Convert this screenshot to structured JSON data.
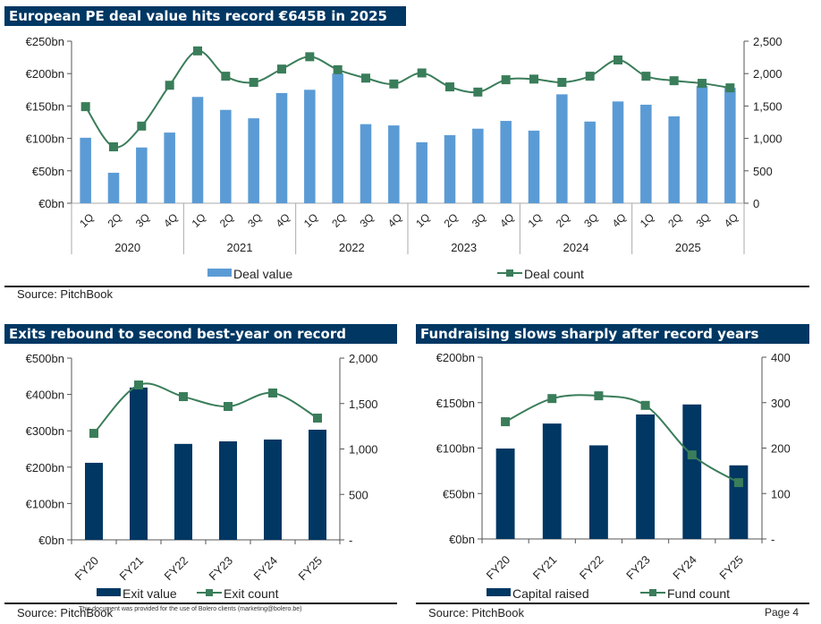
{
  "page": {
    "number_label": "Page 4",
    "disclaimer": "This document was provided for the use of Bolero clients (marketing@bolero.be)"
  },
  "colors": {
    "banner": "#003763",
    "deal_bar": "#5b9bd5",
    "navy_bar": "#003763",
    "line": "#3a7d5a"
  },
  "chart_data": [
    {
      "id": "deals",
      "type": "bar",
      "title": "European PE deal value hits record €645B in 2025",
      "source": "Source: PitchBook",
      "categories": [
        "1Q",
        "2Q",
        "3Q",
        "4Q",
        "1Q",
        "2Q",
        "3Q",
        "4Q",
        "1Q",
        "2Q",
        "3Q",
        "4Q",
        "1Q",
        "2Q",
        "3Q",
        "4Q",
        "1Q",
        "2Q",
        "3Q",
        "4Q",
        "1Q",
        "2Q",
        "3Q",
        "4Q"
      ],
      "groups": [
        "2020",
        "2021",
        "2022",
        "2023",
        "2024",
        "2025"
      ],
      "y_ticks": [
        "€0bn",
        "€50bn",
        "€100bn",
        "€150bn",
        "€200bn",
        "€250bn"
      ],
      "y2_ticks": [
        "0",
        "500",
        "1,000",
        "1,500",
        "2,000",
        "2,500"
      ],
      "ylim": [
        0,
        250
      ],
      "y2lim": [
        0,
        2500
      ],
      "series": [
        {
          "name": "Deal value",
          "type": "bar",
          "axis": "left",
          "values": [
            101,
            47,
            86,
            109,
            164,
            144,
            131,
            170,
            175,
            200,
            122,
            120,
            94,
            105,
            115,
            127,
            112,
            168,
            126,
            157,
            152,
            134,
            181,
            178
          ]
        },
        {
          "name": "Deal count",
          "type": "line",
          "axis": "right",
          "values": [
            1490,
            870,
            1190,
            1820,
            2350,
            1960,
            1865,
            2070,
            2260,
            2060,
            1930,
            1840,
            2010,
            1795,
            1715,
            1905,
            1915,
            1865,
            1960,
            2210,
            1960,
            1890,
            1850,
            1780
          ]
        }
      ],
      "legend": "bottom"
    },
    {
      "id": "exits",
      "type": "bar",
      "title": "Exits rebound to second best-year on record",
      "source": "Source: PitchBook",
      "categories": [
        "FY20",
        "FY21",
        "FY22",
        "FY23",
        "FY24",
        "FY25"
      ],
      "y_ticks": [
        "€0bn",
        "€100bn",
        "€200bn",
        "€300bn",
        "€400bn",
        "€500bn"
      ],
      "y2_ticks": [
        "-",
        "500",
        "1,000",
        "1,500",
        "2,000"
      ],
      "ylim": [
        0,
        500
      ],
      "y2lim": [
        0,
        2000
      ],
      "series": [
        {
          "name": "Exit value",
          "type": "bar",
          "axis": "left",
          "values": [
            212,
            419,
            264,
            271,
            276,
            303
          ]
        },
        {
          "name": "Exit count",
          "type": "line",
          "axis": "right",
          "values": [
            1172,
            1704,
            1576,
            1468,
            1616,
            1340
          ]
        }
      ],
      "legend": "bottom"
    },
    {
      "id": "fundraising",
      "type": "bar",
      "title": "Fundraising slows sharply after record years",
      "source": "Source: PitchBook",
      "categories": [
        "FY20",
        "FY21",
        "FY22",
        "FY23",
        "FY24",
        "FY25"
      ],
      "y_ticks": [
        "€0bn",
        "€50bn",
        "€100bn",
        "€150bn",
        "€200bn"
      ],
      "y2_ticks": [
        "-",
        "100",
        "200",
        "300",
        "400"
      ],
      "ylim": [
        0,
        200
      ],
      "y2lim": [
        0,
        400
      ],
      "series": [
        {
          "name": "Capital raised",
          "type": "bar",
          "axis": "left",
          "values": [
            99.5,
            127,
            103,
            137,
            148,
            81
          ]
        },
        {
          "name": "Fund count",
          "type": "line",
          "axis": "right",
          "values": [
            258,
            309,
            315,
            294,
            185,
            124
          ]
        }
      ],
      "legend": "bottom"
    }
  ]
}
